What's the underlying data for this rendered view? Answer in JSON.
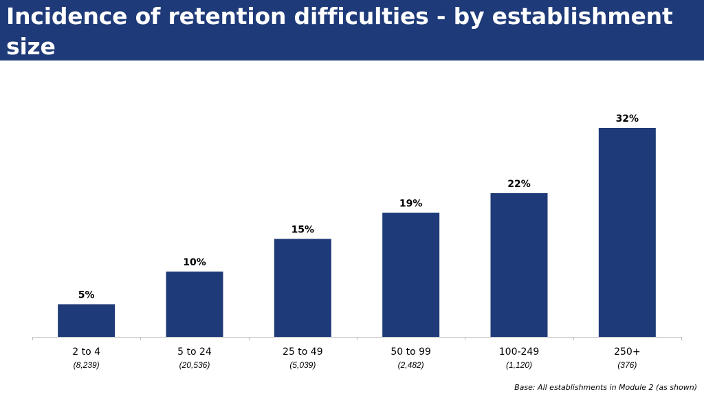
{
  "header": {
    "title": "Incidence of retention difficulties - by establishment size"
  },
  "footnote": "Base: All establishments in Module 2 (as shown)",
  "colors": {
    "header_bg": "#1f3a78",
    "bar": "#1f3a78",
    "axis": "#bfbfbf"
  },
  "chart_data": {
    "type": "bar",
    "title": "Incidence of retention difficulties - by establishment size",
    "categories": [
      "2 to 4",
      "5 to 24",
      "25 to 49",
      "50 to 99",
      "100-249",
      "250+"
    ],
    "bases": [
      "(8,239)",
      "(20,536)",
      "(5,039)",
      "(2,482)",
      "(1,120)",
      "(376)"
    ],
    "values": [
      5,
      10,
      15,
      19,
      22,
      32
    ],
    "data_labels": [
      "5%",
      "10%",
      "15%",
      "19%",
      "22%",
      "32%"
    ],
    "unit": "%",
    "ylim": [
      0,
      34
    ],
    "grid": false,
    "legend": "none"
  }
}
